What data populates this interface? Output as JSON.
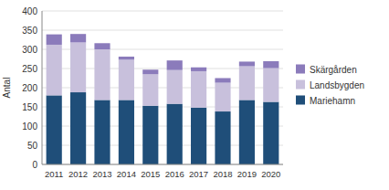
{
  "chart_data": {
    "type": "bar",
    "stacked": true,
    "ylabel": "Antal",
    "categories": [
      "2011",
      "2012",
      "2013",
      "2014",
      "2015",
      "2016",
      "2017",
      "2018",
      "2019",
      "2020"
    ],
    "series": [
      {
        "name": "Mariehamn",
        "color": "#1F4E79",
        "values": [
          180,
          188,
          168,
          168,
          153,
          158,
          148,
          138,
          168,
          163
        ]
      },
      {
        "name": "Landsbygden",
        "color": "#C8C0DC",
        "values": [
          132,
          130,
          132,
          105,
          82,
          88,
          95,
          75,
          88,
          88
        ]
      },
      {
        "name": "Skärgården",
        "color": "#8B7BBB",
        "values": [
          27,
          22,
          16,
          8,
          12,
          25,
          10,
          12,
          12,
          18
        ]
      }
    ],
    "ylim": [
      0,
      400
    ],
    "yticks": [
      0,
      50,
      100,
      150,
      200,
      250,
      300,
      350,
      400
    ],
    "grid": true,
    "legend": "right"
  }
}
